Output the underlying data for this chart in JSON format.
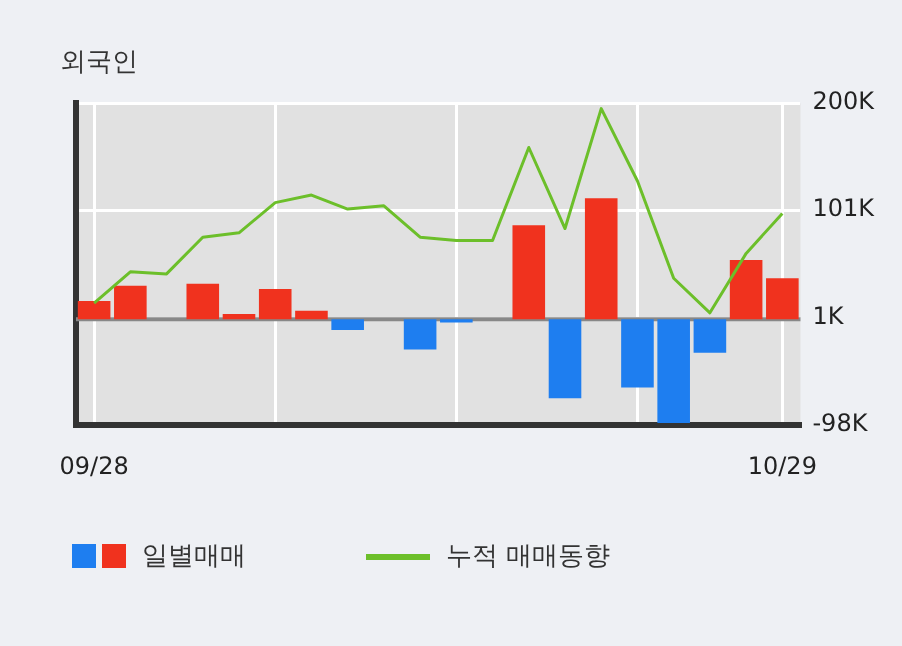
{
  "chart_data": {
    "type": "bar",
    "title": "외국인",
    "categories": [
      "09/28",
      null,
      null,
      null,
      null,
      null,
      null,
      null,
      null,
      null,
      null,
      null,
      null,
      null,
      null,
      null,
      null,
      null,
      null,
      "10/29"
    ],
    "series": [
      {
        "name": "일별매매",
        "colors": [
          "#f0321e",
          "#f0321e",
          "#f0321e",
          "#f0321e",
          "#f0321e",
          "#f0321e",
          "#f0321e",
          "#1e7ef0",
          "#f0321e",
          "#1e7ef0",
          "#1e7ef0",
          "#f0321e",
          "#f0321e",
          "#1e7ef0",
          "#f0321e",
          "#1e7ef0",
          "#1e7ef0",
          "#1e7ef0",
          "#f0321e",
          "#f0321e"
        ],
        "values": [
          17,
          31,
          0,
          33,
          5,
          28,
          8,
          -10,
          0,
          -28,
          -3,
          0,
          87,
          -73,
          112,
          -63,
          -96,
          -31,
          55,
          38
        ]
      },
      {
        "name": "누적 매매동향",
        "type": "line",
        "color": "#6cbf2a",
        "values": [
          15,
          44,
          42,
          76,
          80,
          108,
          115,
          102,
          105,
          76,
          73,
          73,
          159,
          84,
          195,
          128,
          38,
          6,
          61,
          98
        ]
      }
    ],
    "ylim": [
      -98,
      200
    ],
    "yticks": [
      {
        "value": 200,
        "label": "200K"
      },
      {
        "value": 101,
        "label": "101K"
      },
      {
        "value": 1,
        "label": "1K"
      },
      {
        "value": -98,
        "label": "-98K"
      }
    ],
    "grid": true,
    "legend": "bottom",
    "marker": "none"
  }
}
